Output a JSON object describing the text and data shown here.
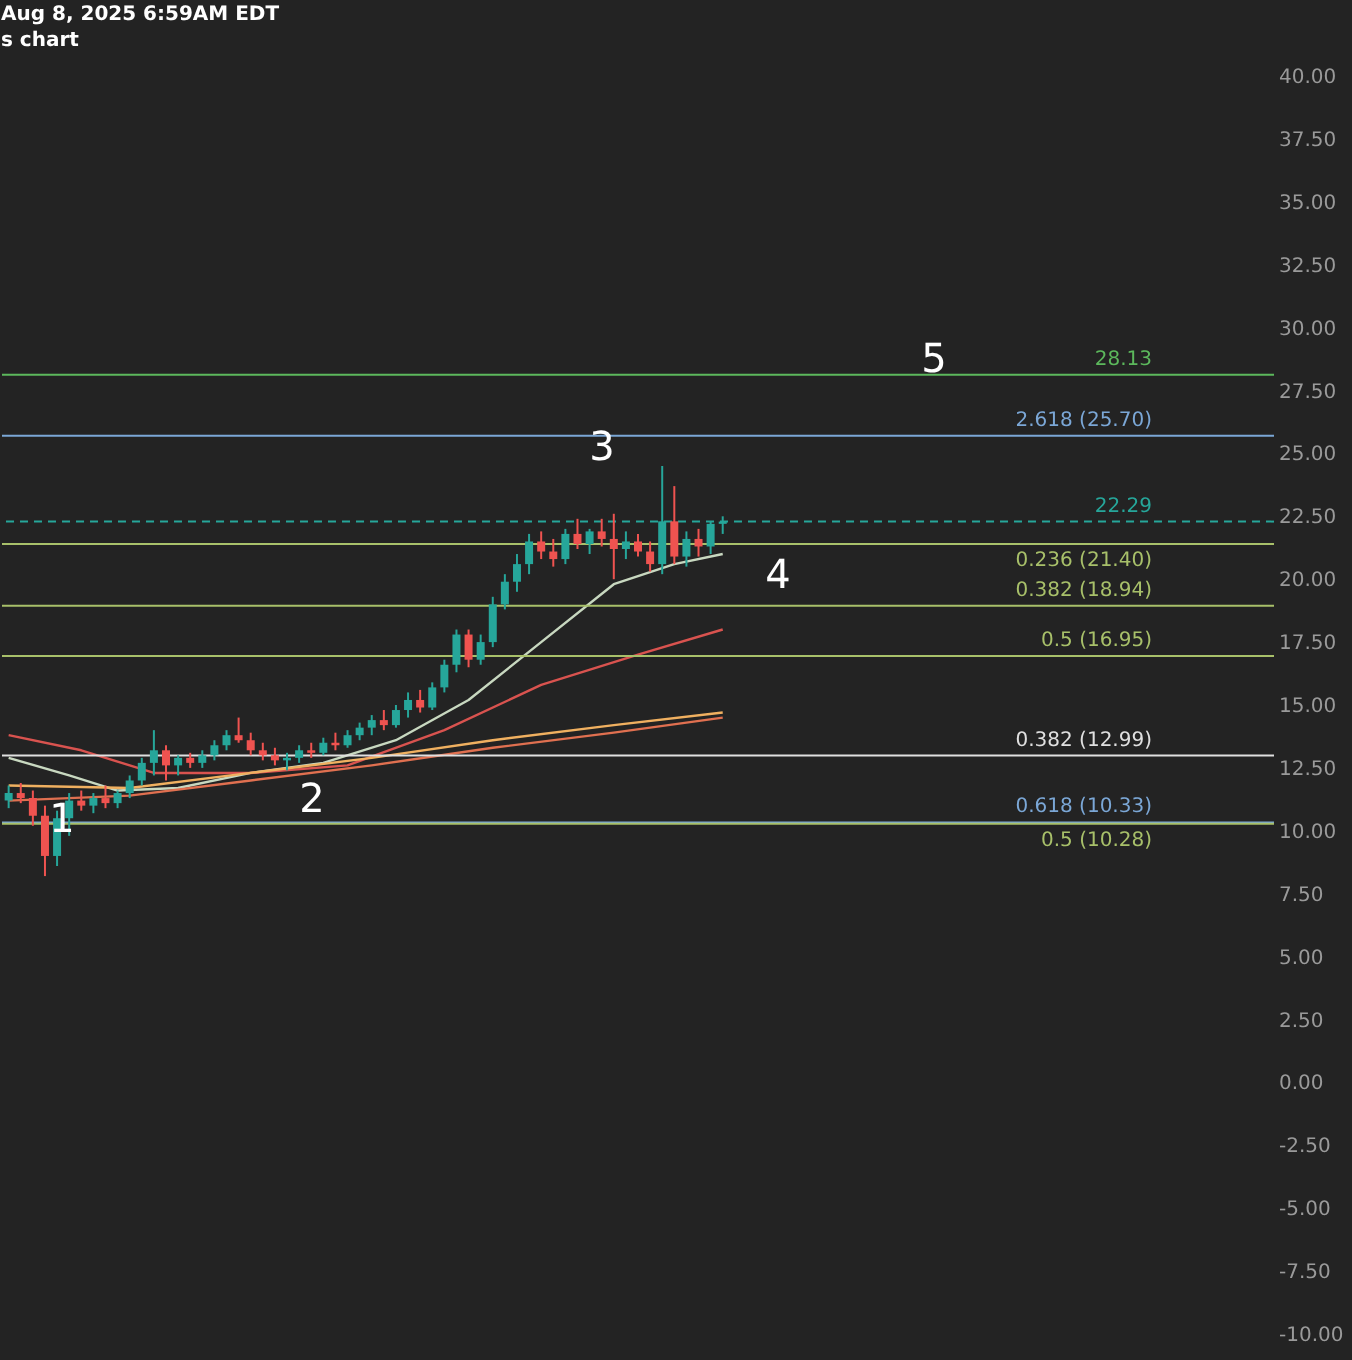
{
  "chart_data": {
    "type": "candlestick",
    "title": "Aug 8, 2025 6:59AM EDT",
    "subtitle": "s chart",
    "categories": [
      null,
      null,
      null,
      null,
      null,
      null,
      null,
      null,
      null,
      null,
      null,
      null,
      null,
      null,
      null,
      null,
      null,
      null,
      null,
      null,
      null,
      null,
      null,
      null,
      null,
      null,
      null,
      null,
      null,
      null,
      null,
      null,
      null,
      null,
      null,
      null,
      null,
      null,
      null,
      null,
      null,
      null,
      null,
      null,
      null,
      null,
      null,
      null,
      null,
      null,
      null,
      null,
      null,
      null,
      null,
      null,
      null,
      null,
      null,
      null,
      null,
      null,
      null,
      null,
      null,
      null,
      null,
      null,
      null,
      null,
      null,
      null,
      null,
      null,
      null,
      null,
      null,
      null,
      null,
      null,
      null,
      null,
      null,
      null,
      null,
      null,
      null,
      null,
      null,
      null,
      null,
      null,
      null,
      null,
      null,
      null,
      null,
      null,
      null,
      null,
      null,
      null,
      null,
      null,
      null
    ],
    "ohlc": [
      [
        11.2,
        11.8,
        10.9,
        11.5
      ],
      [
        11.5,
        11.9,
        11.1,
        11.3
      ],
      [
        11.3,
        11.6,
        10.2,
        10.6
      ],
      [
        10.6,
        11.0,
        8.2,
        9.0
      ],
      [
        9.0,
        10.8,
        8.6,
        10.5
      ],
      [
        10.5,
        11.5,
        9.8,
        11.2
      ],
      [
        11.2,
        11.6,
        10.8,
        11.0
      ],
      [
        11.0,
        11.5,
        10.7,
        11.3
      ],
      [
        11.3,
        11.8,
        10.9,
        11.1
      ],
      [
        11.1,
        11.6,
        10.9,
        11.5
      ],
      [
        11.5,
        12.2,
        11.3,
        12.0
      ],
      [
        12.0,
        12.9,
        11.8,
        12.7
      ],
      [
        12.7,
        14.0,
        12.2,
        13.2
      ],
      [
        13.2,
        13.4,
        12.0,
        12.6
      ],
      [
        12.6,
        13.0,
        12.2,
        12.9
      ],
      [
        12.9,
        13.1,
        12.5,
        12.7
      ],
      [
        12.7,
        13.2,
        12.5,
        13.0
      ],
      [
        13.0,
        13.6,
        12.8,
        13.4
      ],
      [
        13.4,
        14.0,
        13.2,
        13.8
      ],
      [
        13.8,
        14.5,
        13.5,
        13.6
      ],
      [
        13.6,
        13.9,
        13.0,
        13.2
      ],
      [
        13.2,
        13.5,
        12.8,
        13.0
      ],
      [
        13.0,
        13.3,
        12.6,
        12.8
      ],
      [
        12.8,
        13.1,
        12.4,
        12.9
      ],
      [
        12.9,
        13.4,
        12.7,
        13.2
      ],
      [
        13.2,
        13.5,
        12.9,
        13.1
      ],
      [
        13.1,
        13.7,
        13.0,
        13.5
      ],
      [
        13.5,
        13.9,
        13.2,
        13.4
      ],
      [
        13.4,
        14.0,
        13.3,
        13.8
      ],
      [
        13.8,
        14.3,
        13.6,
        14.1
      ],
      [
        14.1,
        14.6,
        13.8,
        14.4
      ],
      [
        14.4,
        14.8,
        14.0,
        14.2
      ],
      [
        14.2,
        15.0,
        14.1,
        14.8
      ],
      [
        14.8,
        15.5,
        14.5,
        15.2
      ],
      [
        15.2,
        15.6,
        14.7,
        14.9
      ],
      [
        14.9,
        15.9,
        14.8,
        15.7
      ],
      [
        15.7,
        16.8,
        15.5,
        16.6
      ],
      [
        16.6,
        18.0,
        16.3,
        17.8
      ],
      [
        17.8,
        18.0,
        16.5,
        16.8
      ],
      [
        16.8,
        17.8,
        16.6,
        17.5
      ],
      [
        17.5,
        19.3,
        17.3,
        19.0
      ],
      [
        19.0,
        20.2,
        18.8,
        19.9
      ],
      [
        19.9,
        21.0,
        19.5,
        20.6
      ],
      [
        20.6,
        21.8,
        20.2,
        21.5
      ],
      [
        21.5,
        21.9,
        20.8,
        21.1
      ],
      [
        21.1,
        21.6,
        20.5,
        20.8
      ],
      [
        20.8,
        22.0,
        20.6,
        21.8
      ],
      [
        21.8,
        22.4,
        21.2,
        21.4
      ],
      [
        21.4,
        22.0,
        21.0,
        21.9
      ],
      [
        21.9,
        22.4,
        21.3,
        21.6
      ],
      [
        21.6,
        22.6,
        20.0,
        21.2
      ],
      [
        21.2,
        21.9,
        20.8,
        21.5
      ],
      [
        21.5,
        21.8,
        20.9,
        21.1
      ],
      [
        21.1,
        21.5,
        20.3,
        20.6
      ],
      [
        20.6,
        24.5,
        20.2,
        22.3
      ],
      [
        22.3,
        23.7,
        20.6,
        20.9
      ],
      [
        20.9,
        21.9,
        20.5,
        21.6
      ],
      [
        21.6,
        22.0,
        20.9,
        21.3
      ],
      [
        21.3,
        22.3,
        21.0,
        22.2
      ],
      [
        22.2,
        22.5,
        21.8,
        22.29
      ],
      null,
      null,
      null,
      null,
      null,
      null,
      null,
      null,
      null,
      null,
      null,
      null,
      null,
      null,
      null,
      null,
      null,
      null,
      null,
      null,
      null,
      null,
      null,
      null,
      null,
      null,
      null,
      null,
      null,
      null,
      null,
      null,
      null,
      null,
      null,
      null,
      null,
      null,
      null,
      null,
      null,
      null,
      null,
      null,
      null
    ],
    "colors": [
      "#26a69a",
      "#ef5350",
      "#ef5350",
      "#ef5350",
      "#26a69a",
      "#26a69a",
      "#ef5350",
      "#26a69a",
      "#ef5350",
      "#26a69a",
      "#26a69a",
      "#26a69a",
      "#26a69a",
      "#ef5350",
      "#26a69a",
      "#ef5350",
      "#26a69a",
      "#26a69a",
      "#26a69a",
      "#ef5350",
      "#ef5350",
      "#ef5350",
      "#ef5350",
      "#26a69a",
      "#26a69a",
      "#ef5350",
      "#26a69a",
      "#ef5350",
      "#26a69a",
      "#26a69a",
      "#26a69a",
      "#ef5350",
      "#26a69a",
      "#26a69a",
      "#ef5350",
      "#26a69a",
      "#26a69a",
      "#26a69a",
      "#ef5350",
      "#26a69a",
      "#26a69a",
      "#26a69a",
      "#26a69a",
      "#26a69a",
      "#ef5350",
      "#ef5350",
      "#26a69a",
      "#ef5350",
      "#26a69a",
      "#ef5350",
      "#ef5350",
      "#26a69a",
      "#ef5350",
      "#ef5350",
      "#26a69a",
      "#ef5350",
      "#26a69a",
      "#ef5350",
      "#26a69a",
      "#26a69a",
      null,
      null,
      null,
      null,
      null,
      null,
      null,
      null,
      null,
      null,
      null,
      null,
      null,
      null,
      null,
      null,
      null,
      null,
      null,
      null,
      null,
      null,
      null,
      null,
      null,
      null,
      null,
      null,
      null,
      null,
      null,
      null,
      null,
      null,
      null,
      null,
      null,
      null,
      null,
      null,
      null,
      null,
      null,
      null,
      null
    ],
    "series": [
      {
        "type": "line",
        "color": "#c8d8c0",
        "values": [
          12.9,
          null,
          null,
          null,
          null,
          12.2,
          null,
          null,
          null,
          11.6,
          null,
          null,
          null,
          null,
          11.7,
          null,
          null,
          null,
          null,
          null,
          12.3,
          null,
          null,
          null,
          null,
          null,
          12.7,
          null,
          null,
          null,
          null,
          null,
          13.6,
          null,
          null,
          null,
          null,
          null,
          15.2,
          null,
          null,
          null,
          null,
          null,
          17.5,
          null,
          null,
          null,
          null,
          null,
          19.8,
          null,
          null,
          null,
          null,
          20.6,
          null,
          null,
          null,
          21.0,
          null,
          null,
          null,
          null,
          null,
          null,
          null,
          null,
          null,
          null,
          null,
          null,
          null,
          null,
          null,
          null,
          null,
          null,
          null,
          null,
          null,
          null,
          null,
          null,
          null,
          null,
          null,
          null,
          null,
          null,
          null,
          null,
          null,
          null,
          null,
          null,
          null,
          null,
          null,
          null,
          null,
          null,
          null,
          null,
          null
        ]
      },
      {
        "type": "line",
        "color": "#d9534f",
        "values": [
          13.8,
          null,
          null,
          null,
          null,
          null,
          13.2,
          null,
          null,
          null,
          null,
          null,
          12.3,
          null,
          null,
          null,
          null,
          null,
          null,
          null,
          12.3,
          null,
          null,
          null,
          null,
          null,
          null,
          null,
          12.6,
          null,
          null,
          null,
          null,
          null,
          null,
          null,
          14.0,
          null,
          null,
          null,
          null,
          null,
          null,
          null,
          15.8,
          null,
          null,
          null,
          null,
          null,
          null,
          null,
          17.0,
          null,
          null,
          null,
          null,
          null,
          null,
          18.0,
          null,
          null,
          null,
          null,
          null,
          null,
          null,
          null,
          null,
          null,
          null,
          null,
          null,
          null,
          null,
          null,
          null,
          null,
          null,
          null,
          null,
          null,
          null,
          null,
          null,
          null,
          null,
          null,
          null,
          null,
          null,
          null,
          null,
          null,
          null,
          null,
          null,
          null,
          null,
          null,
          null,
          null,
          null,
          null,
          null
        ]
      },
      {
        "type": "line",
        "color": "#f0b060",
        "values": [
          11.8,
          null,
          null,
          null,
          null,
          null,
          null,
          null,
          null,
          null,
          11.7,
          null,
          null,
          null,
          null,
          null,
          null,
          null,
          null,
          null,
          12.3,
          null,
          null,
          null,
          null,
          null,
          null,
          null,
          null,
          null,
          12.9,
          null,
          null,
          null,
          null,
          null,
          null,
          null,
          null,
          null,
          13.6,
          null,
          null,
          null,
          null,
          null,
          null,
          null,
          null,
          null,
          14.2,
          null,
          null,
          null,
          null,
          null,
          null,
          null,
          null,
          14.7,
          null,
          null,
          null,
          null,
          null,
          null,
          null,
          null,
          null,
          null,
          null,
          null,
          null,
          null,
          null,
          null,
          null,
          null,
          null,
          null,
          null,
          null,
          null,
          null,
          null,
          null,
          null,
          null,
          null,
          null,
          null,
          null,
          null,
          null,
          null,
          null,
          null,
          null,
          null,
          null,
          null,
          null,
          null,
          null,
          null
        ]
      },
      {
        "type": "line",
        "color": "#e07050",
        "values": [
          11.2,
          null,
          null,
          null,
          null,
          null,
          null,
          null,
          null,
          null,
          11.4,
          null,
          null,
          null,
          null,
          null,
          null,
          null,
          null,
          null,
          12.0,
          null,
          null,
          null,
          null,
          null,
          null,
          null,
          null,
          null,
          12.6,
          null,
          null,
          null,
          null,
          null,
          null,
          null,
          null,
          null,
          13.3,
          null,
          null,
          null,
          null,
          null,
          null,
          null,
          null,
          null,
          13.9,
          null,
          null,
          null,
          null,
          null,
          null,
          null,
          null,
          14.5,
          null,
          null,
          null,
          null,
          null,
          null,
          null,
          null,
          null,
          null,
          null,
          null,
          null,
          null,
          null,
          null,
          null,
          null,
          null,
          null,
          null,
          null,
          null,
          null,
          null,
          null,
          null,
          null,
          null,
          null,
          null,
          null,
          null,
          null,
          null,
          null,
          null,
          null,
          null,
          null,
          null,
          null,
          null,
          null,
          null
        ]
      }
    ],
    "ylim": [
      -10,
      40
    ],
    "yticks": [
      {
        "value": -10,
        "label": "-10.00"
      },
      {
        "value": -7.5,
        "label": "-7.50"
      },
      {
        "value": -5,
        "label": "-5.00"
      },
      {
        "value": -2.5,
        "label": "-2.50"
      },
      {
        "value": 0,
        "label": "0.00"
      },
      {
        "value": 2.5,
        "label": "2.50"
      },
      {
        "value": 5,
        "label": "5.00"
      },
      {
        "value": 7.5,
        "label": "7.50"
      },
      {
        "value": 10,
        "label": "10.00"
      },
      {
        "value": 12.5,
        "label": "12.50"
      },
      {
        "value": 15,
        "label": "15.00"
      },
      {
        "value": 17.5,
        "label": "17.50"
      },
      {
        "value": 20,
        "label": "20.00"
      },
      {
        "value": 22.5,
        "label": "22.50"
      },
      {
        "value": 25,
        "label": "25.00"
      },
      {
        "value": 27.5,
        "label": "27.50"
      },
      {
        "value": 30,
        "label": "30.00"
      },
      {
        "value": 32.5,
        "label": "32.50"
      },
      {
        "value": 35,
        "label": "35.00"
      },
      {
        "value": 37.5,
        "label": "37.50"
      },
      {
        "value": 40,
        "label": "40.00"
      }
    ],
    "ref_lines": [
      {
        "axis": "y",
        "value": 28.13,
        "label": "28.13",
        "color": "#5cb85c"
      },
      {
        "axis": "y",
        "value": 25.7,
        "label": "2.618 (25.70)",
        "color": "#7ba7d6"
      },
      {
        "axis": "y",
        "value": 22.29,
        "label": "22.29",
        "color": "#26a69a",
        "line_style": "dashed"
      },
      {
        "axis": "y",
        "value": 21.4,
        "label": "0.236 (21.40)",
        "color": "#a8c06a"
      },
      {
        "axis": "y",
        "value": 18.94,
        "label": "0.382 (18.94)",
        "color": "#a8c06a"
      },
      {
        "axis": "y",
        "value": 16.95,
        "label": "0.5 (16.95)",
        "color": "#a8c06a"
      },
      {
        "axis": "y",
        "value": 12.99,
        "label": "0.382 (12.99)",
        "color": "#e0e0e0"
      },
      {
        "axis": "y",
        "value": 10.33,
        "label": "0.618 (10.33)",
        "color": "#7ba7d6"
      },
      {
        "axis": "y",
        "value": 10.28,
        "label": "0.5 (10.28)",
        "color": "#a8c06a"
      }
    ],
    "annotations": [
      "1",
      "2",
      "3",
      "4",
      "5"
    ],
    "grid": false,
    "tick_labels": "y"
  }
}
